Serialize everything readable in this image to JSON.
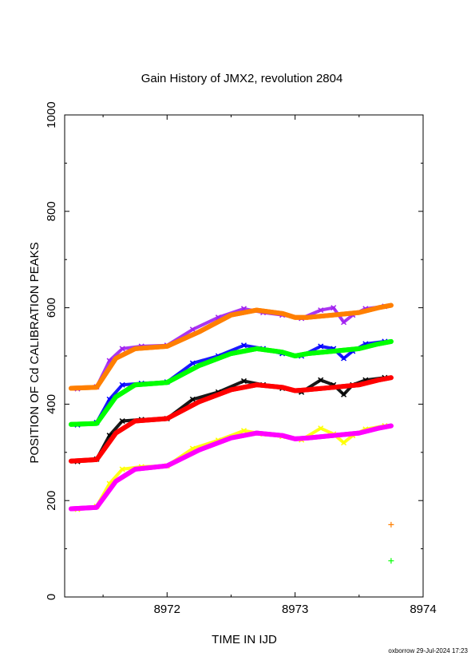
{
  "chart_data": {
    "type": "line",
    "title": "Gain History of JMX2, revolution 2804",
    "xlabel": "TIME IN IJD",
    "ylabel": "POSITION OF Cd CALIBRATION PEAKS",
    "xlim": [
      8971.2,
      8974.0
    ],
    "ylim": [
      0,
      1000
    ],
    "x_ticks": [
      8972,
      8973,
      8974
    ],
    "x_tick_labels": [
      "8972",
      "8973",
      "8974"
    ],
    "y_ticks": [
      0,
      200,
      400,
      600,
      800,
      1000
    ],
    "y_tick_labels": [
      "0",
      "200",
      "400",
      "600",
      "800",
      "1000"
    ],
    "grid": false,
    "footer": "oxborrow 29-Jul-2024 17:23",
    "series": [
      {
        "style": "fit-line",
        "color": "#ff7f00",
        "x": [
          8971.25,
          8971.45,
          8971.6,
          8971.75,
          8972.0,
          8972.25,
          8972.5,
          8972.7,
          8972.9,
          8973.0,
          8973.1,
          8973.3,
          8973.5,
          8973.65,
          8973.75
        ],
        "y": [
          433,
          435,
          495,
          515,
          520,
          550,
          585,
          595,
          588,
          580,
          580,
          585,
          590,
          600,
          605
        ]
      },
      {
        "style": "raw-points",
        "color": "#a020f0",
        "x": [
          8971.3,
          8971.45,
          8971.55,
          8971.65,
          8971.8,
          8972.0,
          8972.2,
          8972.4,
          8972.6,
          8972.75,
          8972.9,
          8973.05,
          8973.2,
          8973.3,
          8973.38,
          8973.45,
          8973.55,
          8973.7
        ],
        "y": [
          432,
          436,
          490,
          515,
          520,
          522,
          555,
          580,
          598,
          590,
          585,
          578,
          595,
          600,
          570,
          585,
          598,
          603
        ]
      },
      {
        "style": "fit-line",
        "color": "#00ff00",
        "x": [
          8971.25,
          8971.45,
          8971.6,
          8971.75,
          8972.0,
          8972.25,
          8972.5,
          8972.7,
          8972.9,
          8973.0,
          8973.1,
          8973.3,
          8973.5,
          8973.65,
          8973.75
        ],
        "y": [
          358,
          360,
          415,
          440,
          445,
          480,
          505,
          515,
          508,
          500,
          505,
          510,
          515,
          525,
          530
        ]
      },
      {
        "style": "raw-points",
        "color": "#0000ff",
        "x": [
          8971.3,
          8971.45,
          8971.55,
          8971.65,
          8971.8,
          8972.0,
          8972.2,
          8972.4,
          8972.6,
          8972.75,
          8972.9,
          8973.05,
          8973.2,
          8973.3,
          8973.38,
          8973.45,
          8973.55,
          8973.7
        ],
        "y": [
          357,
          362,
          410,
          440,
          443,
          446,
          485,
          500,
          522,
          515,
          505,
          500,
          520,
          515,
          495,
          510,
          525,
          530
        ]
      },
      {
        "style": "fit-line",
        "color": "#ff0000",
        "x": [
          8971.25,
          8971.45,
          8971.6,
          8971.75,
          8972.0,
          8972.25,
          8972.5,
          8972.7,
          8972.9,
          8973.0,
          8973.1,
          8973.3,
          8973.5,
          8973.65,
          8973.75
        ],
        "y": [
          282,
          285,
          340,
          365,
          370,
          405,
          430,
          440,
          435,
          428,
          430,
          435,
          440,
          450,
          455
        ]
      },
      {
        "style": "raw-points",
        "color": "#000000",
        "x": [
          8971.3,
          8971.45,
          8971.55,
          8971.65,
          8971.8,
          8972.0,
          8972.2,
          8972.4,
          8972.6,
          8972.75,
          8972.9,
          8973.05,
          8973.2,
          8973.3,
          8973.38,
          8973.45,
          8973.55,
          8973.7
        ],
        "y": [
          281,
          286,
          335,
          365,
          368,
          370,
          410,
          425,
          448,
          440,
          433,
          425,
          450,
          440,
          420,
          440,
          450,
          455
        ]
      },
      {
        "style": "fit-line",
        "color": "#ff00ff",
        "x": [
          8971.25,
          8971.45,
          8971.6,
          8971.75,
          8972.0,
          8972.25,
          8972.5,
          8972.7,
          8972.9,
          8973.0,
          8973.1,
          8973.3,
          8973.5,
          8973.65,
          8973.75
        ],
        "y": [
          183,
          186,
          240,
          265,
          272,
          305,
          330,
          340,
          335,
          328,
          330,
          335,
          340,
          350,
          355
        ]
      },
      {
        "style": "raw-points",
        "color": "#ffff00",
        "x": [
          8971.3,
          8971.45,
          8971.55,
          8971.65,
          8971.8,
          8972.0,
          8972.2,
          8972.4,
          8972.6,
          8972.75,
          8972.9,
          8973.05,
          8973.2,
          8973.3,
          8973.38,
          8973.45,
          8973.55,
          8973.7
        ],
        "y": [
          182,
          188,
          235,
          265,
          270,
          272,
          308,
          325,
          345,
          338,
          333,
          326,
          350,
          338,
          320,
          335,
          348,
          355
        ]
      }
    ],
    "extra_points": [
      {
        "x": 8973.75,
        "y": 150,
        "color": "#ff7f00",
        "marker": "+"
      },
      {
        "x": 8973.75,
        "y": 75,
        "color": "#00ff00",
        "marker": "+"
      }
    ]
  }
}
